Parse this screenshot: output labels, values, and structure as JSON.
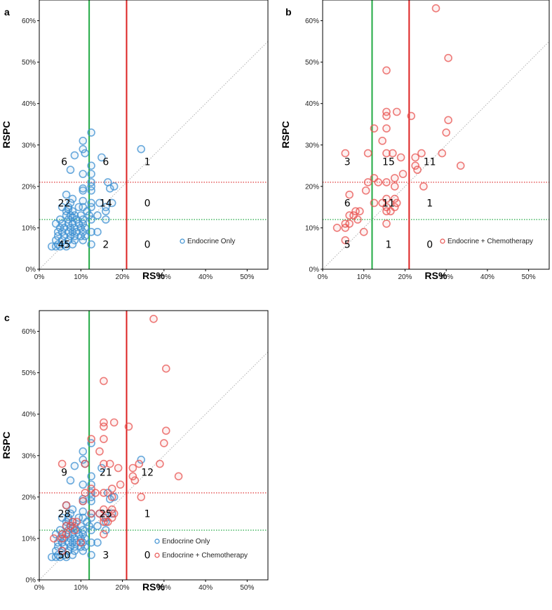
{
  "colors": {
    "endocrine": "#3b8fd1",
    "chemo": "#e8524f",
    "green_line": "#22aa44",
    "red_line": "#dd2222",
    "diagonal": "#b0b0b0"
  },
  "chart_data": [
    {
      "type": "scatter",
      "panel_label": "a",
      "xlabel": "RS%",
      "ylabel": "RSPC",
      "xlim": [
        0,
        55
      ],
      "ylim": [
        0,
        65
      ],
      "x_ticks": [
        "0%",
        "10%",
        "20%",
        "30%",
        "40%",
        "50%"
      ],
      "y_ticks": [
        "0%",
        "10%",
        "20%",
        "30%",
        "40%",
        "50%",
        "60%"
      ],
      "vertical_lines": [
        {
          "x": 12,
          "color": "green"
        },
        {
          "x": 21,
          "color": "red"
        }
      ],
      "horizontal_dotted_lines": [
        {
          "y": 21,
          "color": "red"
        },
        {
          "y": 12,
          "color": "green"
        }
      ],
      "diagonal": "y = x",
      "legend": [
        "Endocrine Only"
      ],
      "region_counts": [
        {
          "label": "6",
          "x": 6,
          "y": 26
        },
        {
          "label": "6",
          "x": 16,
          "y": 26
        },
        {
          "label": "1",
          "x": 26,
          "y": 26
        },
        {
          "label": "22",
          "x": 6,
          "y": 16
        },
        {
          "label": "14",
          "x": 16,
          "y": 16
        },
        {
          "label": "0",
          "x": 26,
          "y": 16
        },
        {
          "label": "45",
          "x": 6,
          "y": 6
        },
        {
          "label": "2",
          "x": 16,
          "y": 6
        },
        {
          "label": "0",
          "x": 26,
          "y": 6
        }
      ],
      "series": [
        {
          "name": "Endocrine Only",
          "points": [
            [
              12.5,
              33
            ],
            [
              10.5,
              31
            ],
            [
              10.5,
              29
            ],
            [
              24.5,
              29
            ],
            [
              11,
              28
            ],
            [
              8.5,
              27.5
            ],
            [
              15,
              27
            ],
            [
              7.5,
              24
            ],
            [
              12.5,
              25
            ],
            [
              10.5,
              23
            ],
            [
              12.5,
              23
            ],
            [
              12.5,
              21
            ],
            [
              16.5,
              21
            ],
            [
              12.5,
              20
            ],
            [
              18,
              20
            ],
            [
              17,
              19.5
            ],
            [
              10.5,
              19.5
            ],
            [
              10.5,
              19
            ],
            [
              12.5,
              19
            ],
            [
              6.5,
              18
            ],
            [
              8,
              17
            ],
            [
              10.5,
              16.5
            ],
            [
              7.5,
              16
            ],
            [
              12.5,
              16
            ],
            [
              14.5,
              16
            ],
            [
              17.5,
              16
            ],
            [
              5.5,
              15
            ],
            [
              7,
              15
            ],
            [
              9.5,
              15
            ],
            [
              10.5,
              15
            ],
            [
              12.5,
              15
            ],
            [
              16,
              15
            ],
            [
              6.5,
              14
            ],
            [
              7,
              14.5
            ],
            [
              8,
              14
            ],
            [
              11.5,
              14
            ],
            [
              16,
              14
            ],
            [
              6.5,
              13
            ],
            [
              7.5,
              13
            ],
            [
              8.5,
              13
            ],
            [
              10,
              13
            ],
            [
              12,
              13
            ],
            [
              14,
              13
            ],
            [
              5,
              12
            ],
            [
              7,
              12
            ],
            [
              8,
              12.5
            ],
            [
              9,
              12
            ],
            [
              10.5,
              12
            ],
            [
              12.5,
              12
            ],
            [
              16,
              12
            ],
            [
              4,
              11
            ],
            [
              5.5,
              11
            ],
            [
              7,
              11
            ],
            [
              8,
              11
            ],
            [
              9.5,
              11
            ],
            [
              10.5,
              11
            ],
            [
              5,
              10
            ],
            [
              6,
              10
            ],
            [
              7.5,
              10
            ],
            [
              8.5,
              10
            ],
            [
              10,
              10
            ],
            [
              11,
              10
            ],
            [
              4.5,
              9
            ],
            [
              5.5,
              9
            ],
            [
              7,
              9
            ],
            [
              8,
              9
            ],
            [
              9,
              9
            ],
            [
              10.5,
              9
            ],
            [
              12.5,
              9
            ],
            [
              14,
              9
            ],
            [
              4.5,
              8
            ],
            [
              6,
              8
            ],
            [
              7.5,
              8
            ],
            [
              8.5,
              8
            ],
            [
              10,
              8
            ],
            [
              11,
              8
            ],
            [
              4,
              7
            ],
            [
              5.5,
              7
            ],
            [
              7,
              7
            ],
            [
              8.5,
              7
            ],
            [
              10.5,
              7
            ],
            [
              4.5,
              6
            ],
            [
              6,
              6
            ],
            [
              8,
              6
            ],
            [
              12.5,
              6
            ],
            [
              3,
              5.5
            ],
            [
              4,
              5.5
            ],
            [
              5,
              5.5
            ],
            [
              6.5,
              5.5
            ]
          ]
        }
      ]
    },
    {
      "type": "scatter",
      "panel_label": "b",
      "xlabel": "RS%",
      "ylabel": "RSPC",
      "xlim": [
        0,
        55
      ],
      "ylim": [
        0,
        65
      ],
      "x_ticks": [
        "0%",
        "10%",
        "20%",
        "30%",
        "40%",
        "50%"
      ],
      "y_ticks": [
        "0%",
        "10%",
        "20%",
        "30%",
        "40%",
        "50%",
        "60%"
      ],
      "vertical_lines": [
        {
          "x": 12,
          "color": "green"
        },
        {
          "x": 21,
          "color": "red"
        }
      ],
      "horizontal_dotted_lines": [
        {
          "y": 21,
          "color": "red"
        },
        {
          "y": 12,
          "color": "green"
        }
      ],
      "diagonal": "y = x",
      "legend": [
        "Endocrine + Chemotherapy"
      ],
      "region_counts": [
        {
          "label": "3",
          "x": 6,
          "y": 26
        },
        {
          "label": "15",
          "x": 16,
          "y": 26
        },
        {
          "label": "11",
          "x": 26,
          "y": 26
        },
        {
          "label": "6",
          "x": 6,
          "y": 16
        },
        {
          "label": "11",
          "x": 16,
          "y": 16
        },
        {
          "label": "1",
          "x": 26,
          "y": 16
        },
        {
          "label": "5",
          "x": 6,
          "y": 6
        },
        {
          "label": "1",
          "x": 16,
          "y": 6
        },
        {
          "label": "0",
          "x": 26,
          "y": 6
        }
      ],
      "series": [
        {
          "name": "Endocrine + Chemotherapy",
          "points": [
            [
              27.5,
              63
            ],
            [
              30.5,
              51
            ],
            [
              15.5,
              48
            ],
            [
              15.5,
              38
            ],
            [
              18,
              38
            ],
            [
              15.5,
              37
            ],
            [
              21.5,
              37
            ],
            [
              30.5,
              36
            ],
            [
              12.5,
              34
            ],
            [
              15.5,
              34
            ],
            [
              30,
              33
            ],
            [
              14.5,
              31
            ],
            [
              5.5,
              28
            ],
            [
              11,
              28
            ],
            [
              15.5,
              28
            ],
            [
              17,
              28
            ],
            [
              19,
              27
            ],
            [
              22.5,
              27
            ],
            [
              24,
              28
            ],
            [
              29,
              28
            ],
            [
              33.5,
              25
            ],
            [
              22.5,
              25
            ],
            [
              23,
              24
            ],
            [
              19.5,
              23
            ],
            [
              12.5,
              22
            ],
            [
              15.5,
              21
            ],
            [
              17.5,
              22
            ],
            [
              13.5,
              21
            ],
            [
              11,
              21
            ],
            [
              10.5,
              19
            ],
            [
              17.5,
              20
            ],
            [
              24.5,
              20
            ],
            [
              6.5,
              18
            ],
            [
              15.5,
              17
            ],
            [
              17.5,
              17
            ],
            [
              18,
              16
            ],
            [
              14.5,
              16
            ],
            [
              12.5,
              16
            ],
            [
              15.5,
              15
            ],
            [
              17.5,
              15
            ],
            [
              16.5,
              14
            ],
            [
              15.5,
              14
            ],
            [
              8,
              14
            ],
            [
              9,
              14
            ],
            [
              6.5,
              13
            ],
            [
              7.5,
              13
            ],
            [
              8.5,
              12
            ],
            [
              5.5,
              11
            ],
            [
              6.5,
              11
            ],
            [
              15.5,
              11
            ],
            [
              3.5,
              10
            ],
            [
              5.5,
              10
            ],
            [
              10,
              9
            ],
            [
              5.5,
              7
            ]
          ]
        }
      ]
    },
    {
      "type": "scatter",
      "panel_label": "c",
      "xlabel": "RS%",
      "ylabel": "RSPC",
      "xlim": [
        0,
        55
      ],
      "ylim": [
        0,
        65
      ],
      "x_ticks": [
        "0%",
        "10%",
        "20%",
        "30%",
        "40%",
        "50%"
      ],
      "y_ticks": [
        "0%",
        "10%",
        "20%",
        "30%",
        "40%",
        "50%",
        "60%"
      ],
      "vertical_lines": [
        {
          "x": 12,
          "color": "green"
        },
        {
          "x": 21,
          "color": "red"
        }
      ],
      "horizontal_dotted_lines": [
        {
          "y": 21,
          "color": "red"
        },
        {
          "y": 12,
          "color": "green"
        }
      ],
      "diagonal": "y = x",
      "legend": [
        "Endocrine Only",
        "Endocrine + Chemotherapy"
      ],
      "region_counts": [
        {
          "label": "9",
          "x": 6,
          "y": 26
        },
        {
          "label": "21",
          "x": 16,
          "y": 26
        },
        {
          "label": "12",
          "x": 26,
          "y": 26
        },
        {
          "label": "28",
          "x": 6,
          "y": 16
        },
        {
          "label": "25",
          "x": 16,
          "y": 16
        },
        {
          "label": "1",
          "x": 26,
          "y": 16
        },
        {
          "label": "50",
          "x": 6,
          "y": 6
        },
        {
          "label": "3",
          "x": 16,
          "y": 6
        },
        {
          "label": "0",
          "x": 26,
          "y": 6
        }
      ],
      "series": [
        {
          "name": "Endocrine Only",
          "points_from_panel": "a"
        },
        {
          "name": "Endocrine + Chemotherapy",
          "points_from_panel": "b"
        }
      ]
    }
  ]
}
